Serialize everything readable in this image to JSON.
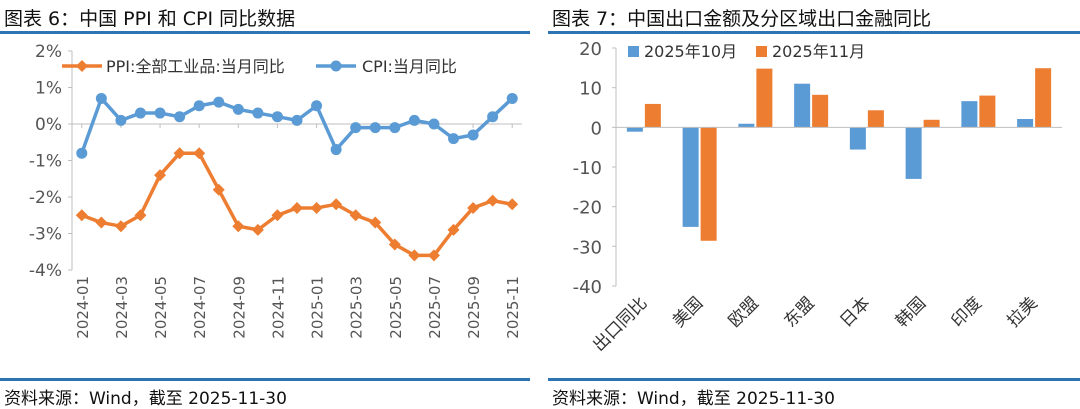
{
  "left": {
    "figure_title": "图表 6：中国 PPI 和 CPI 同比数据",
    "source": "资料来源：Wind，截至 2025-11-30"
  },
  "right": {
    "figure_title": "图表 7：中国出口金额及分区域出口金融同比",
    "source": "资料来源：Wind，截至 2025-11-30"
  },
  "colors": {
    "ppi": "#ed7d31",
    "cpi": "#5b9bd5",
    "rule": "#2d74b5",
    "axis": "#bfbfbf"
  },
  "chart_data": [
    {
      "type": "line",
      "title": "中国 PPI 和 CPI 同比数据",
      "x": [
        "2024-01",
        "2024-02",
        "2024-03",
        "2024-04",
        "2024-05",
        "2024-06",
        "2024-07",
        "2024-08",
        "2024-09",
        "2024-10",
        "2024-11",
        "2024-12",
        "2025-01",
        "2025-02",
        "2025-03",
        "2025-04",
        "2025-05",
        "2025-06",
        "2025-07",
        "2025-08",
        "2025-09",
        "2025-10",
        "2025-11"
      ],
      "x_tick_labels": [
        "2024-01",
        "2024-03",
        "2024-05",
        "2024-07",
        "2024-09",
        "2024-11",
        "2025-01",
        "2025-03",
        "2025-05",
        "2025-07",
        "2025-09",
        "2025-11"
      ],
      "series": [
        {
          "name": "PPI:全部工业品:当月同比",
          "values": [
            -2.5,
            -2.7,
            -2.8,
            -2.5,
            -1.4,
            -0.8,
            -0.8,
            -1.8,
            -2.8,
            -2.9,
            -2.5,
            -2.3,
            -2.3,
            -2.2,
            -2.5,
            -2.7,
            -3.3,
            -3.6,
            -3.6,
            -2.9,
            -2.3,
            -2.1,
            -2.2
          ]
        },
        {
          "name": "CPI:当月同比",
          "values": [
            -0.8,
            0.7,
            0.1,
            0.3,
            0.3,
            0.2,
            0.5,
            0.6,
            0.4,
            0.3,
            0.2,
            0.1,
            0.5,
            -0.7,
            -0.1,
            -0.1,
            -0.1,
            0.1,
            0.0,
            -0.4,
            -0.3,
            0.2,
            0.7
          ]
        }
      ],
      "ylim": [
        -4,
        2
      ],
      "y_tick_labels": [
        "2%",
        "1%",
        "0%",
        "-1%",
        "-2%",
        "-3%",
        "-4%"
      ],
      "legend": "top"
    },
    {
      "type": "bar",
      "title": "中国出口金额及分区域出口金融同比",
      "categories": [
        "出口同比",
        "美国",
        "欧盟",
        "东盟",
        "日本",
        "韩国",
        "印度",
        "拉美"
      ],
      "series": [
        {
          "name": "2025年10月",
          "values": [
            -1.1,
            -25.1,
            0.9,
            11.0,
            -5.6,
            -13.0,
            6.6,
            2.1
          ]
        },
        {
          "name": "2025年11月",
          "values": [
            5.9,
            -28.6,
            14.8,
            8.2,
            4.3,
            1.9,
            8.0,
            14.9
          ]
        }
      ],
      "ylim": [
        -40,
        20
      ],
      "y_tick_labels": [
        "20",
        "10",
        "0",
        "-10",
        "-20",
        "-30",
        "-40"
      ],
      "legend": "top-left"
    }
  ]
}
